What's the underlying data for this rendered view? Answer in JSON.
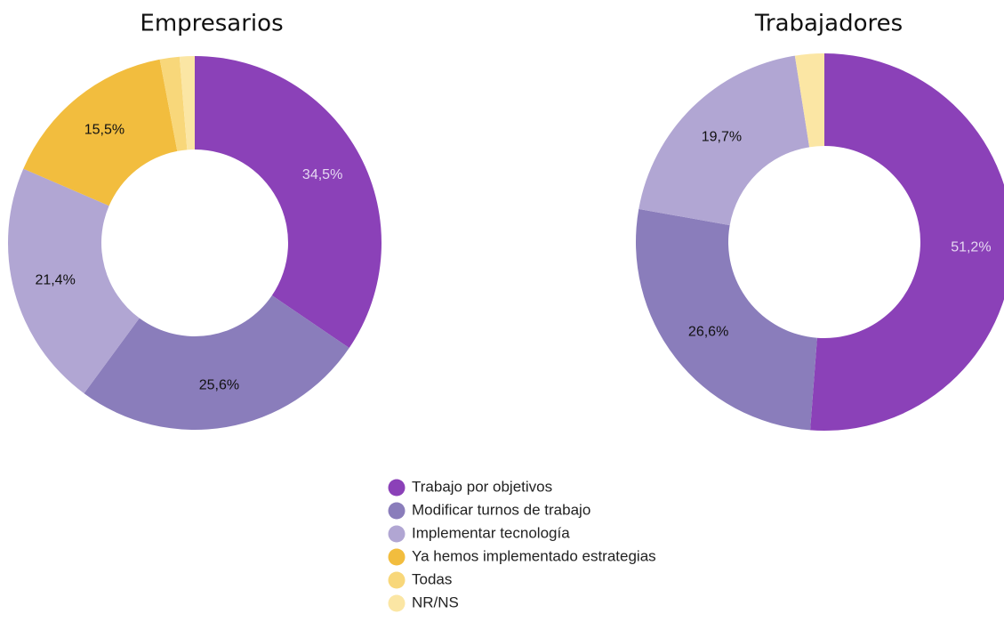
{
  "chart_data": [
    {
      "type": "pie",
      "donut": true,
      "title": "Empresarios",
      "categories": [
        "Trabajo por objetivos",
        "Modificar turnos de trabajo",
        "Implementar tecnología",
        "Ya hemos implementado estrategias",
        "Todas",
        "NR/NS"
      ],
      "values": [
        34.5,
        25.6,
        21.4,
        15.5,
        1.7,
        1.3
      ],
      "value_labels": [
        "34,5%",
        "25,6%",
        "21,4%",
        "15,5%",
        null,
        null
      ],
      "colors": [
        "#8b41b8",
        "#8a7dbb",
        "#b1a6d3",
        "#f2bd3e",
        "#f8d77a",
        "#fbe6a4"
      ]
    },
    {
      "type": "pie",
      "donut": true,
      "title": "Trabajadores",
      "categories": [
        "Trabajo por objetivos",
        "Modificar turnos de trabajo",
        "Implementar tecnología",
        "Ya hemos implementado estrategias",
        "Todas",
        "NR/NS"
      ],
      "values": [
        51.2,
        26.6,
        19.7,
        0,
        0,
        2.5
      ],
      "value_labels": [
        "51,2%",
        "26,6%",
        "19,7%",
        null,
        null,
        null
      ],
      "colors": [
        "#8b41b8",
        "#8a7dbb",
        "#b1a6d3",
        "#f2bd3e",
        "#f8d77a",
        "#fbe6a4"
      ]
    }
  ]
}
